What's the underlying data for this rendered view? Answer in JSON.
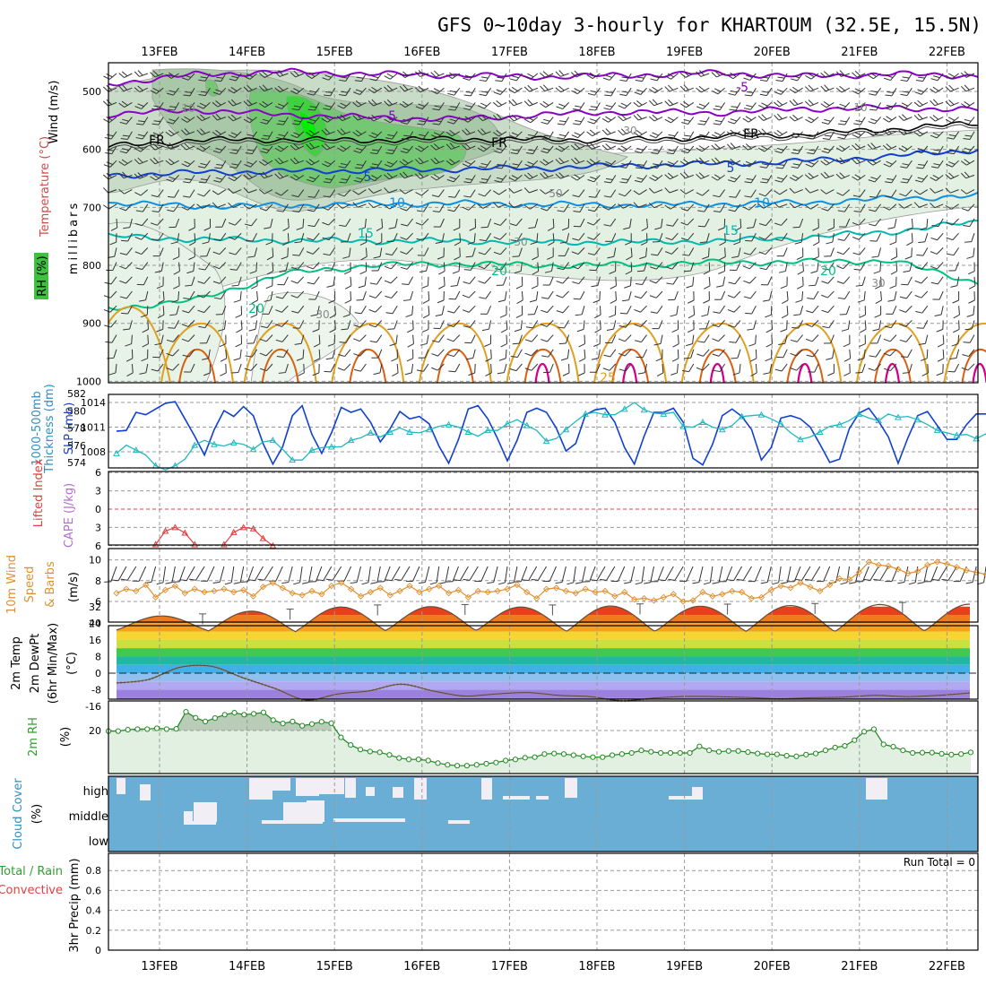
{
  "title": "GFS 0~10day 3-hourly for KHARTOUM (32.5E, 15.5N)",
  "dates": [
    "13FEB",
    "14FEB",
    "15FEB",
    "16FEB",
    "17FEB",
    "18FEB",
    "19FEB",
    "20FEB",
    "21FEB",
    "22FEB"
  ],
  "colors": {
    "purple": "#8a00c8",
    "black": "#000000",
    "blue": "#1040d0",
    "cyan_blue": "#1090e0",
    "teal": "#00b8b0",
    "green": "#00c080",
    "orange": "#e0a020",
    "dark_orange": "#d86010",
    "magenta": "#d0008a",
    "rh_fill": "#dbeedd",
    "sky": "#6aaed6",
    "barb": "#333333"
  },
  "chart_data": [
    {
      "type": "contour",
      "panel": "upper-air",
      "ylabel_parts": [
        "Wind (m/s)",
        "Temperature (°C)",
        "RH (%)"
      ],
      "yunit": "millibars",
      "yticks": [
        500,
        600,
        700,
        800,
        900,
        1000
      ],
      "ylim": [
        450,
        1000
      ],
      "temperature_contours": [
        {
          "label": "-5",
          "color": "#8a00c8",
          "p": [
            487,
            471,
            466,
            470,
            472,
            475,
            472,
            468,
            474,
            470,
            473
          ]
        },
        {
          "label": "-5",
          "color": "#8a00c8",
          "p": [
            540,
            532,
            540,
            545,
            548,
            540,
            535,
            537,
            530,
            528,
            532
          ]
        },
        {
          "label": "FR",
          "color": "#000000",
          "p": [
            595,
            584,
            583,
            584,
            582,
            583,
            584,
            578,
            574,
            565,
            555
          ]
        },
        {
          "label": "5",
          "color": "#1040d0",
          "p": [
            645,
            640,
            638,
            636,
            634,
            632,
            628,
            625,
            620,
            612,
            600
          ]
        },
        {
          "label": "10",
          "color": "#1090e0",
          "p": [
            692,
            698,
            697,
            694,
            693,
            695,
            696,
            694,
            692,
            685,
            680
          ]
        },
        {
          "label": "15",
          "color": "#00b8b0",
          "p": [
            750,
            755,
            757,
            758,
            758,
            760,
            760,
            758,
            752,
            742,
            725
          ]
        },
        {
          "label": "20",
          "color": "#00c080",
          "p": [
            875,
            860,
            815,
            800,
            797,
            800,
            799,
            795,
            794,
            792,
            830
          ]
        }
      ],
      "contour_labels": [
        "-5",
        "-5",
        "FR",
        "FR",
        "FR",
        "5",
        "5",
        "10",
        "10",
        "15",
        "15",
        "20",
        "20",
        "20",
        "25"
      ],
      "rh_labels": [
        "10",
        "10",
        "30",
        "30",
        "50",
        "30",
        "30"
      ]
    },
    {
      "type": "line",
      "panel": "thickness-slp",
      "ylabel_parts": [
        "1000-500mb",
        "Thickness (dm)",
        "SLP (mb)"
      ],
      "left_ticks": [
        574,
        576,
        578,
        580,
        582
      ],
      "right_ticks": [
        1008,
        1011,
        1014
      ],
      "series": [
        {
          "color": "#1040d0",
          "values": [
            1010.5,
            1010.6,
            1012.8,
            1012.5,
            1013.2,
            1013.9,
            1014.1,
            1012.0,
            1009.9,
            1007.6,
            1010.7,
            1013.0,
            1012.3,
            1013.5,
            1012.4,
            1009.0,
            1006.5,
            1008.6,
            1012.4,
            1013.6,
            1010.1,
            1007.8,
            1010.3,
            1013.4,
            1012.8,
            1013.2,
            1011.6,
            1009.2,
            1010.8,
            1012.9,
            1012.0,
            1012.3,
            1011.4,
            1008.7,
            1006.6,
            1009.5,
            1013.2,
            1013.6,
            1012.0,
            1009.6,
            1006.9,
            1009.4,
            1012.8,
            1013.3,
            1012.8,
            1010.9,
            1008.1,
            1009.0,
            1012.5,
            1013.1,
            1013.3,
            1011.6,
            1008.5,
            1006.5,
            1009.9,
            1012.8,
            1012.8,
            1013.3,
            1011.6,
            1007.2,
            1006.4,
            1008.9,
            1012.4,
            1013.2,
            1012.3,
            1010.7,
            1007.0,
            1008.5,
            1012.1,
            1012.4,
            1012.0,
            1011.0,
            1008.9,
            1006.7,
            1007.1,
            1010.8,
            1012.7,
            1013.3,
            1011.7,
            1009.8,
            1006.6,
            1009.7,
            1012.4,
            1012.9,
            1011.2,
            1009.5,
            1009.5,
            1011.3,
            1012.6,
            1012.6
          ]
        },
        {
          "color": "#20b8c0",
          "values": [
            1007.8,
            1008.8,
            1008.2,
            1007.6,
            1006.3,
            1005.8,
            1006.3,
            1007.1,
            1008.8,
            1009.4,
            1008.9,
            1008.7,
            1009.1,
            1008.9,
            1008.3,
            1009.2,
            1009.4,
            1008.3,
            1007.0,
            1007.0,
            1008.2,
            1008.5,
            1008.6,
            1008.6,
            1009.4,
            1009.7,
            1010.3,
            1009.8,
            1010.4,
            1010.9,
            1010.4,
            1010.3,
            1010.7,
            1011.1,
            1011.3,
            1011.0,
            1010.4,
            1009.9,
            1010.6,
            1010.6,
            1011.4,
            1011.9,
            1011.2,
            1010.6,
            1009.3,
            1009.6,
            1010.7,
            1011.7,
            1012.6,
            1012.8,
            1012.5,
            1012.5,
            1013.2,
            1014.0,
            1013.1,
            1012.7,
            1012.6,
            1012.8,
            1011.1,
            1011.0,
            1011.6,
            1011.0,
            1010.7,
            1011.2,
            1012.3,
            1012.4,
            1012.5,
            1012.0,
            1011.4,
            1010.3,
            1009.5,
            1009.8,
            1010.4,
            1011.1,
            1011.3,
            1011.8,
            1012.6,
            1012.1,
            1011.8,
            1012.6,
            1012.2,
            1012.3,
            1011.9,
            1011.3,
            1010.6,
            1010.3,
            1010.0,
            1010.1,
            1009.6,
            1010.2
          ]
        }
      ]
    },
    {
      "type": "line",
      "panel": "lifted-index-cape",
      "ylabel_parts": [
        "Lifted Index",
        "CAPE (J/kg)"
      ],
      "yticks": [
        -6,
        -3,
        0,
        3,
        6
      ],
      "segments": [
        {
          "color": "#e04040",
          "x_start": "2024-02-13T12",
          "values": [
            5.8,
            3.6,
            3.0,
            3.9,
            5.8
          ]
        },
        {
          "color": "#e04040",
          "x_start": "2024-02-14T09",
          "values": [
            5.8,
            3.8,
            3.0,
            3.2,
            4.8,
            6.0
          ]
        }
      ]
    },
    {
      "type": "line",
      "panel": "10m-wind",
      "ylabel_parts": [
        "10m Wind",
        "Speed",
        "& Barbs",
        "(m/s)"
      ],
      "yticks": [
        6,
        8,
        10
      ],
      "series": [
        {
          "color": "#e09030",
          "values": [
            6.8,
            7.2,
            7.0,
            7.6,
            6.4,
            7.1,
            7.5,
            6.8,
            7.2,
            6.9,
            7.0,
            7.2,
            6.9,
            7.1,
            6.5,
            7.4,
            7.8,
            7.3,
            6.8,
            6.6,
            7.0,
            6.7,
            7.5,
            7.8,
            7.2,
            6.5,
            6.9,
            7.3,
            6.6,
            7.0,
            7.5,
            6.9,
            7.2,
            7.5,
            6.8,
            7.1,
            6.4,
            7.0,
            6.9,
            7.0,
            7.2,
            7.6,
            6.9,
            6.3,
            7.2,
            7.3,
            7.0,
            6.8,
            7.2,
            6.9,
            7.0,
            6.5,
            6.9,
            6.2,
            6.3,
            6.1,
            6.4,
            6.7,
            6.0,
            6.1,
            6.9,
            6.5,
            6.7,
            7.0,
            6.9,
            6.3,
            6.4,
            7.1,
            7.5,
            7.3,
            7.8,
            7.4,
            7.0,
            7.6,
            8.2,
            8.1,
            8.8,
            9.8,
            9.5,
            9.4,
            9.1,
            8.7,
            8.9,
            9.5,
            9.8,
            9.6,
            9.3,
            9.0,
            8.8,
            8.6
          ]
        }
      ]
    },
    {
      "type": "area",
      "panel": "2m-temperature",
      "ylabel_parts": [
        "2m Temp",
        "2m DewPt",
        "(6hr Min/Max)",
        "(°C)"
      ],
      "yticks": [
        -16,
        -8,
        0,
        8,
        16,
        24,
        32
      ],
      "temperature_max": [
        27.5,
        29.8,
        31.8,
        32.0,
        31.8,
        32.3,
        32.2,
        32.5,
        33.0,
        33.2
      ],
      "temperature_min": [
        20.8,
        19.9,
        20.4,
        20.7,
        20.5,
        20.0,
        20.4,
        20.0,
        20.2,
        20.6
      ],
      "dewpoint": [
        -4.7,
        -3.1,
        2.8,
        3.3,
        -2.2,
        -7.3,
        -12.9,
        -10.0,
        -8.5,
        -5.3,
        -8.5,
        -11.0,
        -10.0,
        -9.3,
        -10.7,
        -11.3,
        -13.3,
        -12.0,
        -11.2,
        -11.3,
        -11.7,
        -12.3,
        -11.8,
        -11.5,
        -10.7,
        -11.3,
        -10.7,
        -9.5
      ]
    },
    {
      "type": "area",
      "panel": "2m-rh",
      "ylabel_parts": [
        "2m RH",
        "(%)"
      ],
      "yticks": [
        20
      ],
      "values": [
        19.8,
        19.8,
        20.3,
        20.5,
        20.5,
        20.8,
        20.5,
        20.6,
        26.6,
        24.5,
        23.2,
        24.4,
        25.6,
        26.3,
        25.6,
        25.9,
        26.4,
        23.7,
        22.5,
        23.2,
        21.7,
        22.3,
        23.1,
        22.6,
        17.6,
        14.9,
        13.3,
        12.6,
        12.3,
        11.4,
        10.3,
        9.8,
        9.8,
        9.4,
        8.5,
        7.9,
        7.6,
        7.6,
        7.9,
        8.3,
        8.7,
        9.4,
        9.8,
        10.4,
        10.6,
        11.7,
        11.9,
        11.7,
        11.3,
        10.9,
        10.6,
        10.6,
        11.3,
        11.7,
        12.1,
        13.0,
        12.5,
        12.1,
        12.1,
        12.1,
        12.1,
        14.4,
        13.0,
        12.5,
        12.8,
        12.8,
        12.4,
        11.9,
        11.6,
        11.6,
        11.1,
        10.9,
        11.5,
        11.9,
        13.0,
        14.0,
        14.6,
        16.6,
        19.6,
        20.5,
        15.1,
        14.3,
        13.0,
        12.1,
        12.2,
        12.2,
        11.8,
        11.5,
        11.7,
        12.3
      ]
    },
    {
      "type": "heatmap",
      "panel": "cloud-cover",
      "ylabel_parts": [
        "Cloud Cover",
        "(%)"
      ],
      "rows": [
        "high",
        "middle",
        "low"
      ]
    },
    {
      "type": "bar",
      "panel": "precipitation",
      "ylabel_parts": [
        "Total / Rain",
        "Convective",
        "3hr Precip (mm)"
      ],
      "yticks": [
        0,
        0.2,
        0.4,
        0.6,
        0.8
      ],
      "ylim": [
        0,
        1
      ],
      "annotation": "Run Total = 0",
      "values": []
    }
  ]
}
